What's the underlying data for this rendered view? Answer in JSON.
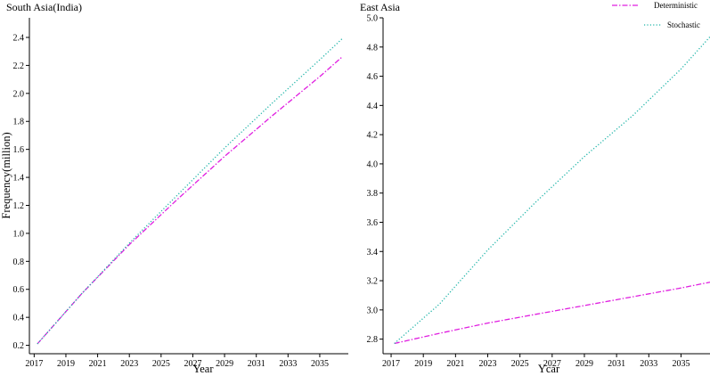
{
  "chart_data": [
    {
      "type": "line",
      "title": "South Asia(India)",
      "xlabel": "Year",
      "ylabel": "Frequency(million)",
      "xlim": [
        2016.7,
        2036.8
      ],
      "ylim": [
        0.14,
        2.54
      ],
      "x_ticks": [
        2017,
        2019,
        2021,
        2023,
        2025,
        2027,
        2029,
        2031,
        2033,
        2035
      ],
      "y_ticks": [
        0.2,
        0.4,
        0.6,
        0.8,
        1.0,
        1.2,
        1.4,
        1.6,
        1.8,
        2.0,
        2.2,
        2.4
      ],
      "y_tick_labels": [
        "0.2",
        "0.4",
        "0.6",
        "0.8",
        "1.0",
        "1.2",
        "1.4",
        "1.6",
        "1.8",
        "2.0",
        "2.2",
        "2.4"
      ],
      "grid": false,
      "legend": "none",
      "series": [
        {
          "name": "Deterministic",
          "color": "#e01ee0",
          "dash": "dashdot",
          "x": [
            2017.2,
            2020,
            2023,
            2026,
            2029,
            2032,
            2035,
            2036.4
          ],
          "y": [
            0.21,
            0.57,
            0.92,
            1.24,
            1.55,
            1.84,
            2.12,
            2.26
          ]
        },
        {
          "name": "Stochastic",
          "color": "#1eb4a8",
          "dash": "dotted",
          "x": [
            2017.2,
            2020,
            2023,
            2026,
            2029,
            2032,
            2035,
            2036.4
          ],
          "y": [
            0.21,
            0.57,
            0.93,
            1.27,
            1.61,
            1.93,
            2.24,
            2.39
          ]
        }
      ]
    },
    {
      "type": "line",
      "title": "East Asia",
      "xlabel": "Ycar",
      "ylabel": "",
      "xlim": [
        2016.5,
        2036.8
      ],
      "ylim": [
        2.7,
        5.0
      ],
      "x_ticks": [
        2017,
        2019,
        2021,
        2023,
        2025,
        2027,
        2029,
        2031,
        2033,
        2035
      ],
      "y_ticks": [
        2.8,
        3.0,
        3.2,
        3.4,
        3.6,
        3.8,
        4.0,
        4.2,
        4.4,
        4.6,
        4.8,
        5.0
      ],
      "y_tick_labels": [
        "2.8",
        "3.0",
        "3.2",
        "3.4",
        "3.6",
        "3.8",
        "4.0",
        "4.2",
        "4.4",
        "4.6",
        "4.8",
        "5.0"
      ],
      "grid": false,
      "legend": "top-right",
      "series": [
        {
          "name": "Deterministic",
          "color": "#e01ee0",
          "dash": "dashdot",
          "x": [
            2017.2,
            2020,
            2023,
            2026,
            2029,
            2032,
            2035,
            2036.8
          ],
          "y": [
            2.77,
            2.84,
            2.91,
            2.97,
            3.03,
            3.09,
            3.15,
            3.19
          ]
        },
        {
          "name": "Stochastic",
          "color": "#1eb4a8",
          "dash": "dotted",
          "x": [
            2017.2,
            2020,
            2023,
            2026,
            2029,
            2032,
            2035,
            2036.8
          ],
          "y": [
            2.77,
            3.04,
            3.41,
            3.74,
            4.05,
            4.33,
            4.65,
            4.87
          ]
        }
      ]
    }
  ]
}
